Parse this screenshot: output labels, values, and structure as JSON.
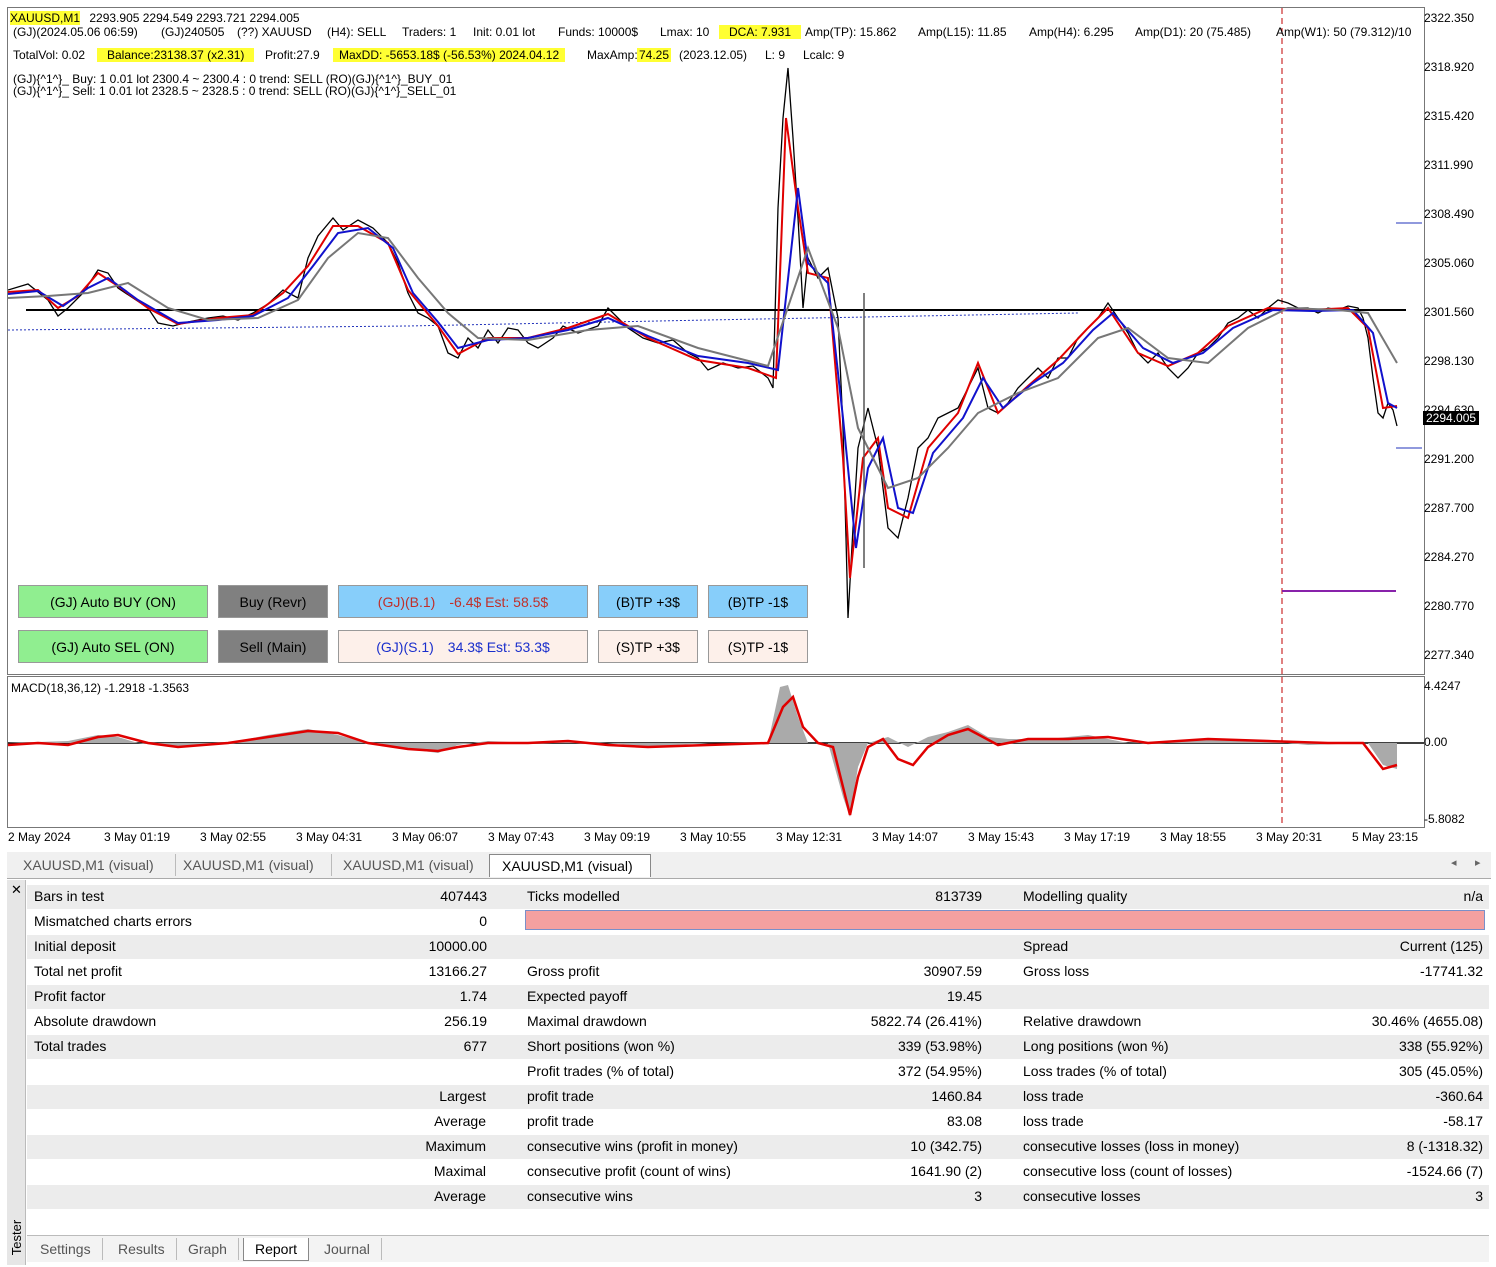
{
  "chart": {
    "symbol": "XAUUSD,M1",
    "ohlc": "2293.905 2294.549 2293.721 2294.005",
    "line2": {
      "a": "(GJ)(2024.05.06 06:59)",
      "b": "(GJ)240505",
      "c": "(??) XAUUSD",
      "d": "(H4): SELL",
      "e": "Traders: 1",
      "f": "Init: 0.01 lot",
      "g": "Funds: 10000$",
      "h": "Lmax: 10",
      "i": "DCA: 7.931",
      "j": "Amp(TP): 15.862",
      "k": "Amp(L15): 11.85",
      "l": "Amp(H4): 6.295",
      "m": "Amp(D1): 20 (75.485)",
      "n": "Amp(W1): 50 (79.312)/10"
    },
    "line3": {
      "a": "TotalVol: 0.02",
      "b": "Balance:23138.37 (x2.31)",
      "c": "Profit:27.9",
      "d": "MaxDD: -5653.18$ (-56.53%) 2024.04.12",
      "e": "MaxAmp:",
      "f": "74.25",
      "g": "(2023.12.05)",
      "h": "L: 9",
      "i": "Lcalc: 9"
    },
    "line4": "(GJ){^1^}_ Buy: 1   0.01 lot    2300.4 ~ 2300.4 :    0   trend: SELL   (RO)(GJ){^1^}_BUY_01",
    "line5": "(GJ){^1^}_ Sell:  1   0.01 lot    2328.5 ~ 2328.5 :    0   trend: SELL   (RO)(GJ){^1^}_SELL_01",
    "price_labels": [
      "2322.350",
      "2318.920",
      "2315.420",
      "2311.990",
      "2308.490",
      "2305.060",
      "2301.560",
      "2298.130",
      "2294.630",
      "2291.200",
      "2287.700",
      "2284.270",
      "2280.770",
      "2277.340"
    ],
    "current_price": "2294.005",
    "macd_label": "MACD(18,36,12) -1.2918 -1.3563",
    "macd_labels": [
      "4.4247",
      "0.00",
      "-5.8082"
    ],
    "time_labels": [
      "2 May 2024",
      "3 May 01:19",
      "3 May 02:55",
      "3 May 04:31",
      "3 May 06:07",
      "3 May 07:43",
      "3 May 09:19",
      "3 May 10:55",
      "3 May 12:31",
      "3 May 14:07",
      "3 May 15:43",
      "3 May 17:19",
      "3 May 18:55",
      "3 May 20:31",
      "5 May 23:15"
    ]
  },
  "buttons": {
    "auto_buy": "(GJ) Auto BUY (ON)",
    "buy_revr": "Buy (Revr)",
    "b1_label": "(GJ)(B.1)",
    "b1_value": "-6.4$ Est: 58.5$",
    "btp_plus": "(B)TP +3$",
    "btp_minus": "(B)TP -1$",
    "auto_sel": "(GJ) Auto SEL (ON)",
    "sell_main": "Sell (Main)",
    "s1_label": "(GJ)(S.1)",
    "s1_value": "34.3$ Est: 53.3$",
    "stp_plus": "(S)TP +3$",
    "stp_minus": "(S)TP -1$"
  },
  "chart_tabs": [
    "XAUUSD,M1 (visual)",
    "XAUUSD,M1 (visual)",
    "XAUUSD,M1 (visual)",
    "XAUUSD,M1 (visual)"
  ],
  "report": {
    "rows": [
      [
        "Bars in test",
        "407443",
        "Ticks modelled",
        "813739",
        "Modelling quality",
        "n/a"
      ],
      [
        "Mismatched charts errors",
        "0",
        "",
        "",
        "",
        ""
      ],
      [
        "Initial deposit",
        "10000.00",
        "",
        "",
        "Spread",
        "Current (125)"
      ],
      [
        "Total net profit",
        "13166.27",
        "Gross profit",
        "30907.59",
        "Gross loss",
        "-17741.32"
      ],
      [
        "Profit factor",
        "1.74",
        "Expected payoff",
        "19.45",
        "",
        ""
      ],
      [
        "Absolute drawdown",
        "256.19",
        "Maximal drawdown",
        "5822.74 (26.41%)",
        "Relative drawdown",
        "30.46% (4655.08)"
      ],
      [
        "Total trades",
        "677",
        "Short positions (won %)",
        "339 (53.98%)",
        "Long positions (won %)",
        "338 (55.92%)"
      ],
      [
        "",
        "",
        "Profit trades (% of total)",
        "372 (54.95%)",
        "Loss trades (% of total)",
        "305 (45.05%)"
      ],
      [
        "Largest",
        "",
        "profit trade",
        "1460.84",
        "loss trade",
        "-360.64"
      ],
      [
        "Average",
        "",
        "profit trade",
        "83.08",
        "loss trade",
        "-58.17"
      ],
      [
        "Maximum",
        "",
        "consecutive wins (profit in money)",
        "10 (342.75)",
        "consecutive losses (loss in money)",
        "8 (-1318.32)"
      ],
      [
        "Maximal",
        "",
        "consecutive profit (count of wins)",
        "1641.90 (2)",
        "consecutive loss (count of losses)",
        "-1524.66 (7)"
      ],
      [
        "Average",
        "",
        "consecutive wins",
        "3",
        "consecutive losses",
        "3"
      ]
    ]
  },
  "bottom_tabs": [
    "Settings",
    "Results",
    "Graph",
    "Report",
    "Journal"
  ],
  "sidebar_label": "Tester",
  "colors": {
    "highlight": "#ffff33",
    "green_btn": "#90ee90",
    "gray_btn": "#808080",
    "blue_btn": "#87cefa",
    "pink_btn": "#fdf0ea",
    "error_bar": "#f4a0a0",
    "macd_line": "#e00000"
  }
}
